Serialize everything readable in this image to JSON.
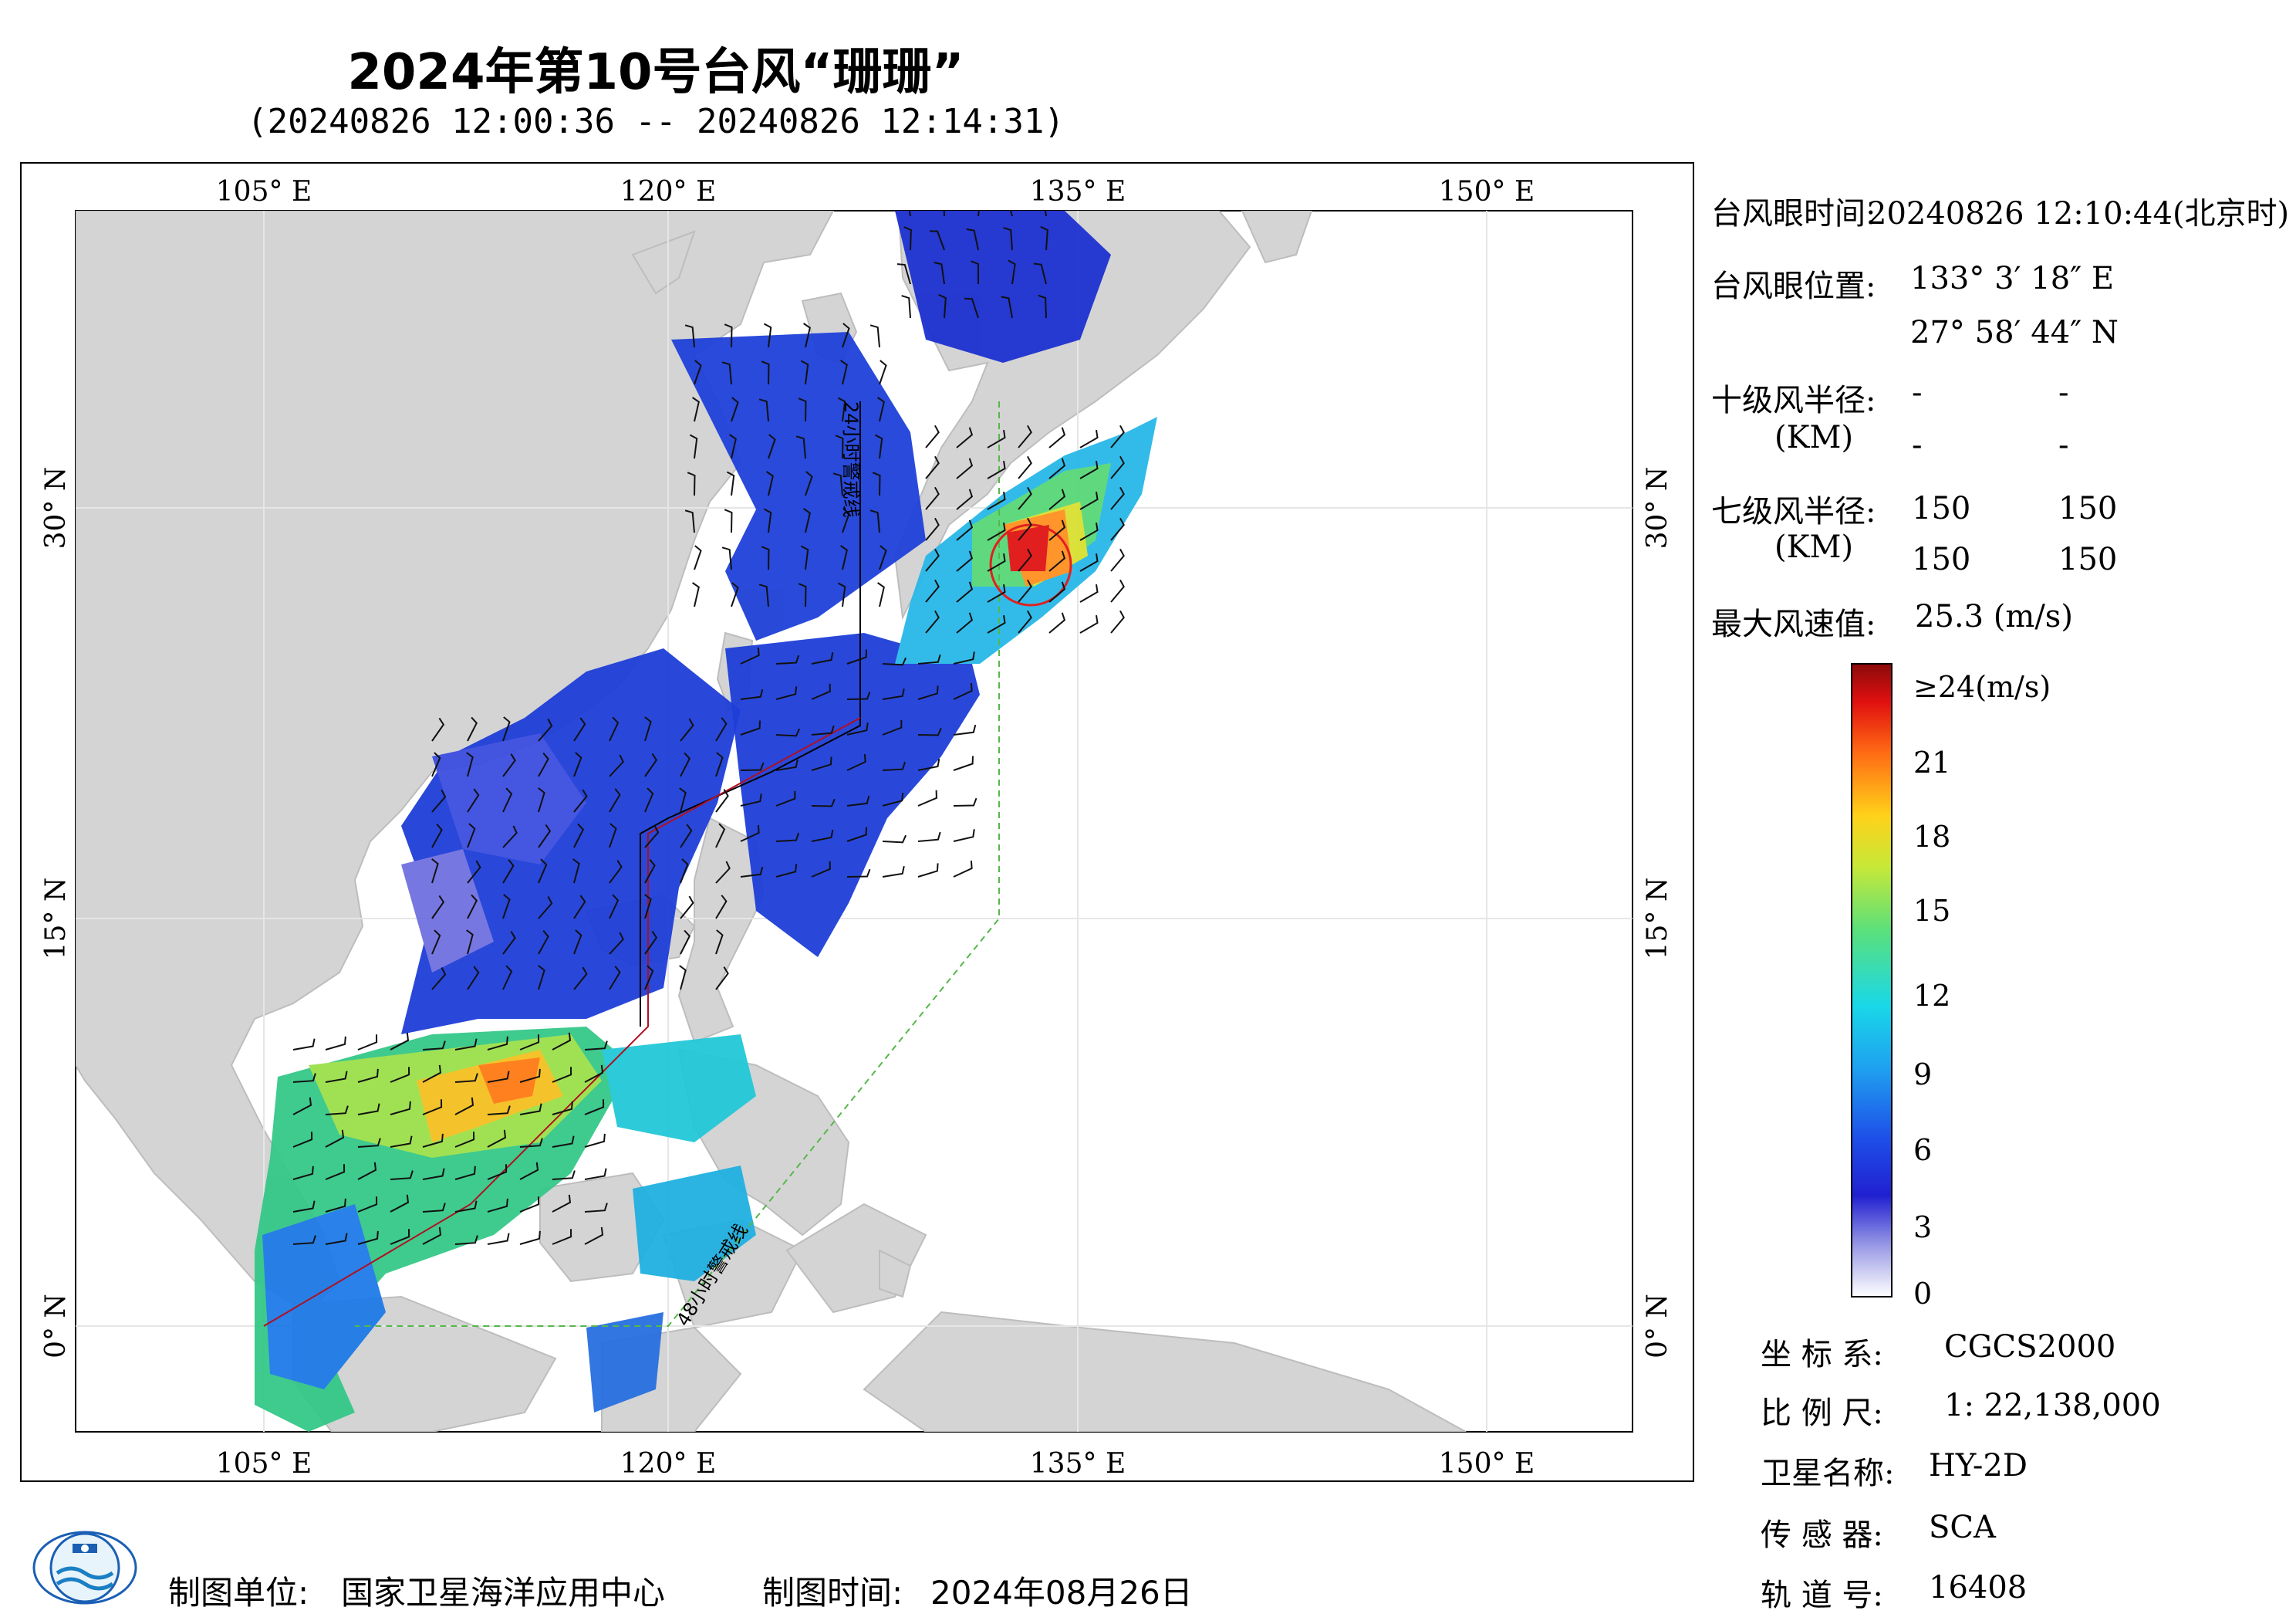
{
  "title": "2024年第10号台风“珊珊”",
  "subtitle": "(20240826 12:00:36 -- 20240826 12:14:31)",
  "map": {
    "lon_ticks": [
      "105° E",
      "120° E",
      "135° E",
      "150° E"
    ],
    "lat_ticks": [
      "30° N",
      "15° N",
      "0° N"
    ],
    "line_label_24h": "24小时警戒线",
    "line_label_48h": "48小时警戒线"
  },
  "info": {
    "eye_time_label": "台风眼时间:",
    "eye_time_value": "20240826 12:10:44(北京时)",
    "eye_pos_label": "台风眼位置:",
    "eye_lon": "133° 3′ 18″ E",
    "eye_lat": "27° 58′ 44″ N",
    "r10_label": "十级风半径:",
    "r10_unit": "(KM)",
    "r10_values": [
      "-",
      "-",
      "-",
      "-"
    ],
    "r7_label": "七级风半径:",
    "r7_unit": "(KM)",
    "r7_values": [
      "150",
      "150",
      "150",
      "150"
    ],
    "max_wind_label": "最大风速值:",
    "max_wind_value": "25.3  (m/s)"
  },
  "colorbar": {
    "labels": [
      "≥24(m/s)",
      "21",
      "18",
      "15",
      "12",
      "9",
      "6",
      "3",
      "0"
    ]
  },
  "meta": {
    "crs_label": "坐 标 系:",
    "crs_value": "CGCS2000",
    "scale_label": "比 例 尺:",
    "scale_value": "1: 22,138,000",
    "satellite_label": "卫星名称:",
    "satellite_value": "HY-2D",
    "sensor_label": "传 感 器:",
    "sensor_value": "SCA",
    "orbit_label": "轨 道 号:",
    "orbit_value": "16408"
  },
  "footer": {
    "producer_label": "制图单位:",
    "producer_value": "国家卫星海洋应用中心",
    "date_label": "制图时间:",
    "date_value": "2024年08月26日"
  },
  "colors": {
    "land": "#d4d4d4",
    "ocean": "#ffffff",
    "warning_line": "#55b848",
    "eye_circle": "#e02020",
    "track": "#b01020"
  }
}
